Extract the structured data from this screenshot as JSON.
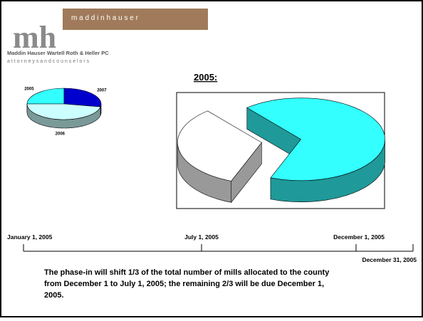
{
  "header": {
    "brand": "m a d d i n   h a u s e r",
    "monogram": "mh",
    "firm": "Maddin Hauser Wartell Roth & Heller PC",
    "tagline": "a t t o r n e y s     a n d     c o u n s e l o r s"
  },
  "chart_data": [
    {
      "type": "pie3d",
      "categories": [
        "2005",
        "2007",
        "2006"
      ],
      "values": [
        25,
        28,
        47
      ],
      "colors": [
        "#33ffff",
        "#0000cc",
        "#ccffff"
      ]
    },
    {
      "type": "pie3d",
      "title": "2005:",
      "categories": [
        null,
        null
      ],
      "values": [
        67,
        33
      ],
      "colors": [
        "#33ffff",
        "#ffffff"
      ],
      "exploded": true
    }
  ],
  "timeline": {
    "labels": [
      "January 1, 2005",
      "July 1, 2005",
      "December 1, 2005",
      "December 31, 2005"
    ]
  },
  "caption": [
    "The phase-in will shift 1/3 of the total number of mills allocated to the county",
    "from December 1 to July 1, 2005; the remaining 2/3 will be due December 1,",
    "2005."
  ]
}
